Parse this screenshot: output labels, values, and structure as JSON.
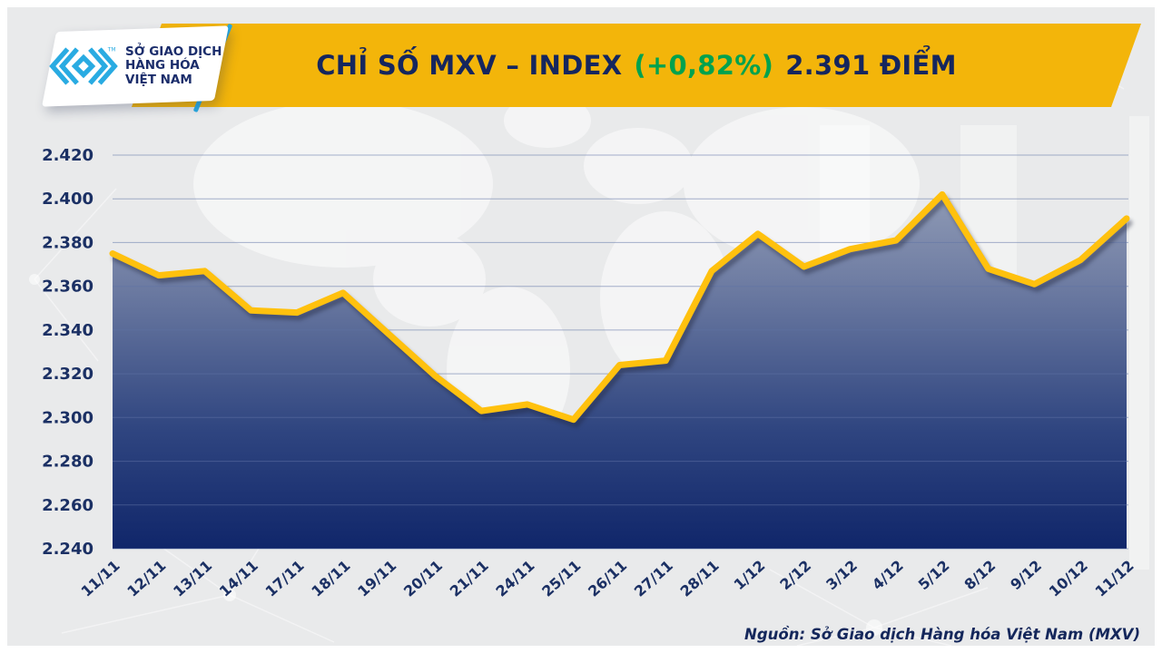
{
  "header": {
    "banner_color": "#F3B50A",
    "title_prefix": "CHỈ SỐ MXV – INDEX",
    "title_change": "(+0,82%)",
    "title_value": "2.391 ĐIỂM",
    "title_color": "#15265E",
    "change_color": "#00A24E",
    "logo": {
      "mark_icon": "mxv-chevron-logo",
      "mark_color": "#29ABE2",
      "tm": "TM",
      "line1": "SỞ GIAO DỊCH",
      "line2": "HÀNG HÓA",
      "line3": "VIỆT NAM"
    }
  },
  "chart_data": {
    "type": "area",
    "title": "CHỈ SỐ MXV – INDEX (+0,82%) 2.391 ĐIỂM",
    "categories": [
      "11/11",
      "12/11",
      "13/11",
      "14/11",
      "17/11",
      "18/11",
      "19/11",
      "20/11",
      "21/11",
      "24/11",
      "25/11",
      "26/11",
      "27/11",
      "28/11",
      "1/12",
      "2/12",
      "3/12",
      "4/12",
      "5/12",
      "8/12",
      "9/12",
      "10/12",
      "11/12"
    ],
    "values": [
      2375,
      2365,
      2367,
      2349,
      2348,
      2357,
      2338,
      2319,
      2303,
      2306,
      2299,
      2324,
      2326,
      2367,
      2384,
      2369,
      2377,
      2381,
      2402,
      2368,
      2361,
      2372,
      2391
    ],
    "unit": "điểm",
    "last_value_label": "2.391",
    "xlabel": "",
    "ylabel": "",
    "ylim": [
      2240,
      2420
    ],
    "ytick_step": 20,
    "ytick_labels": [
      "2.420",
      "2.400",
      "2.380",
      "2.360",
      "2.340",
      "2.320",
      "2.300",
      "2.280",
      "2.260",
      "2.240"
    ],
    "grid": true,
    "legend": "none",
    "line_color": "#FFC10E",
    "grid_color": "rgba(95,115,165,0.55)",
    "axis_label_color": "#1B3064",
    "fill_gradient": [
      [
        0,
        "#9DA7BD"
      ],
      [
        0.32,
        "#6F7DA3"
      ],
      [
        0.7,
        "#2F4580"
      ],
      [
        1,
        "#10266A"
      ]
    ]
  },
  "footer": {
    "source": "Nguồn: Sở Giao dịch Hàng hóa Việt Nam (MXV)"
  }
}
